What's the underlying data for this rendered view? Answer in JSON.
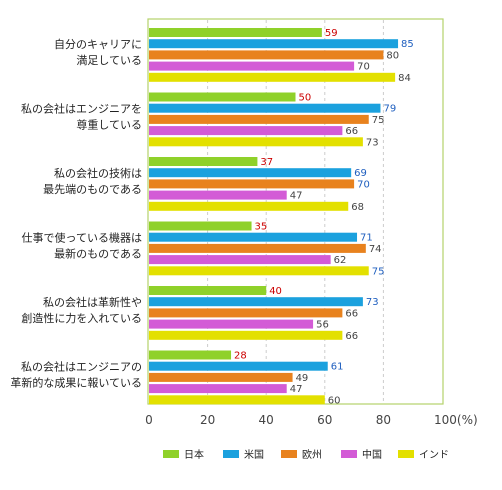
{
  "chart_data": {
    "type": "bar",
    "orientation": "horizontal",
    "categories": [
      [
        "自分のキャリアに",
        "満足している"
      ],
      [
        "私の会社はエンジニアを",
        "尊重している"
      ],
      [
        "私の会社の技術は",
        "最先端のものである"
      ],
      [
        "仕事で使っている機器は",
        "最新のものである"
      ],
      [
        "私の会社は革新性や",
        "創造性に力を入れている"
      ],
      [
        "私の会社はエンジニアの",
        "革新的な成果に報いている"
      ]
    ],
    "series": [
      {
        "name": "日本",
        "color": "#8fd12a",
        "label_color": "#cc0000",
        "values": [
          59,
          50,
          37,
          35,
          40,
          28
        ]
      },
      {
        "name": "米国",
        "color": "#1ba1de",
        "label_color": "#1f5fbf",
        "values": [
          85,
          79,
          69,
          71,
          73,
          61
        ]
      },
      {
        "name": "欧州",
        "color": "#e8821e",
        "label_color": "#444444",
        "values": [
          80,
          75,
          70,
          74,
          66,
          49
        ]
      },
      {
        "name": "中国",
        "color": "#d35bd6",
        "label_color": "#444444",
        "values": [
          70,
          66,
          47,
          62,
          56,
          47
        ]
      },
      {
        "name": "インド",
        "color": "#e3e000",
        "label_color": "#444444",
        "values": [
          84,
          73,
          68,
          75,
          66,
          60
        ]
      }
    ],
    "label_color_overrides": {
      "2,2": "#1f5fbf",
      "3,4": "#1f5fbf"
    },
    "x_ticks": [
      "0",
      "20",
      "40",
      "60",
      "80",
      "100(%)"
    ],
    "xlim": [
      0,
      100
    ],
    "grid": true,
    "legend_position": "bottom",
    "colors": {
      "frame": "#b5d36a",
      "grid": "#cccccc",
      "axis_text": "#444444"
    }
  }
}
